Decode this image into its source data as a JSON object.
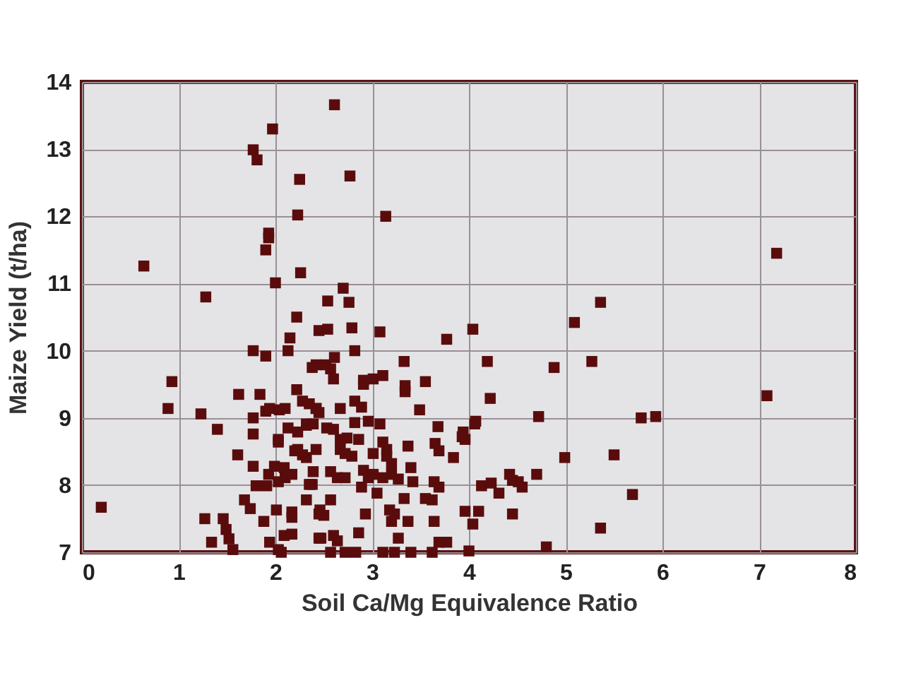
{
  "chart_data": {
    "type": "scatter",
    "xlabel": "Soil Ca/Mg Equivalence Ratio",
    "ylabel": "Maize Yield (t/ha)",
    "color": "#5a0c0c",
    "marker": "square",
    "grid": true,
    "xlim": [
      0,
      8
    ],
    "ylim": [
      7,
      14
    ],
    "xticks": [
      0,
      1,
      2,
      3,
      4,
      5,
      6,
      7,
      8
    ],
    "yticks": [
      7,
      8,
      9,
      10,
      11,
      12,
      13,
      14
    ],
    "x": [
      0.2,
      0.64,
      1.28,
      0.93,
      0.89,
      1.23,
      1.4,
      1.62,
      1.84,
      1.77,
      1.9,
      1.61,
      1.77,
      1.77,
      1.77,
      1.27,
      1.34,
      1.46,
      1.49,
      1.52,
      1.56,
      1.68,
      1.74,
      1.88,
      1.94,
      1.8,
      1.91,
      1.93,
      1.99,
      2.09,
      2.1,
      2.17,
      2.03,
      1.9,
      1.94,
      2.04,
      2.1,
      2.22,
      2.22,
      2.15,
      2.13,
      2.45,
      2.54,
      2.54,
      2.26,
      2.0,
      1.9,
      1.93,
      1.93,
      2.23,
      2.25,
      1.77,
      1.81,
      1.97,
      2.61,
      2.13,
      2.23,
      2.32,
      2.42,
      2.52,
      2.57,
      2.6,
      2.03,
      2.23,
      2.32,
      2.42,
      2.01,
      2.17,
      2.32,
      2.45,
      2.57,
      2.38,
      2.09,
      2.17,
      2.45,
      2.03,
      2.77,
      3.14,
      2.7,
      2.76,
      2.79,
      3.08,
      3.77,
      2.82,
      2.61,
      2.42,
      2.38,
      3.33,
      3.55,
      3.34,
      3.34,
      2.91,
      2.91,
      3.01,
      3.11,
      2.28,
      2.35,
      2.42,
      2.45,
      2.67,
      2.82,
      2.89,
      3.49,
      2.32,
      2.39,
      2.53,
      2.6,
      2.82,
      2.96,
      3.08,
      3.68,
      2.03,
      2.67,
      2.74,
      2.86,
      3.11,
      3.15,
      3.37,
      3.65,
      3.69,
      2.2,
      2.28,
      2.67,
      2.72,
      2.79,
      3.01,
      3.15,
      3.2,
      3.84,
      2.39,
      2.57,
      2.64,
      2.72,
      2.91,
      2.96,
      3.01,
      3.11,
      3.2,
      3.27,
      3.4,
      3.42,
      3.64,
      2.35,
      2.89,
      3.05,
      3.33,
      3.55,
      3.62,
      2.46,
      2.17,
      2.5,
      3.18,
      3.23,
      3.2,
      3.37,
      3.64,
      2.93,
      2.47,
      2.6,
      2.64,
      2.86,
      3.27,
      3.69,
      3.77,
      2.06,
      2.57,
      2.72,
      2.83,
      3.11,
      3.23,
      3.4,
      3.62,
      7.18,
      5.36,
      5.09,
      4.04,
      4.19,
      4.88,
      5.27,
      4.22,
      7.08,
      4.72,
      5.78,
      5.93,
      4.07,
      4.06,
      3.94,
      3.93,
      3.96,
      4.99,
      5.5,
      3.69,
      4.13,
      4.23,
      4.31,
      4.42,
      4.45,
      4.51,
      4.55,
      4.7,
      5.69,
      3.96,
      4.1,
      4.04,
      4.45,
      5.36,
      4.0,
      4.8
    ],
    "values": [
      7.67,
      11.26,
      10.8,
      9.54,
      9.14,
      9.06,
      8.83,
      9.35,
      9.35,
      10.0,
      9.92,
      8.45,
      8.28,
      8.76,
      9.0,
      7.5,
      7.15,
      7.5,
      7.34,
      7.2,
      7.04,
      7.78,
      7.65,
      7.46,
      7.15,
      7.99,
      7.99,
      8.16,
      8.28,
      8.26,
      8.11,
      8.16,
      8.05,
      9.1,
      9.14,
      9.12,
      9.14,
      9.42,
      10.5,
      10.19,
      10.0,
      10.3,
      10.32,
      10.74,
      11.16,
      11.01,
      11.5,
      11.68,
      11.75,
      12.02,
      12.55,
      12.99,
      12.84,
      13.3,
      13.66,
      8.85,
      8.79,
      8.89,
      9.14,
      9.79,
      9.73,
      9.58,
      8.64,
      8.53,
      8.41,
      8.53,
      7.63,
      7.52,
      7.78,
      7.57,
      7.78,
      8.01,
      7.25,
      7.27,
      7.21,
      7.04,
      12.6,
      12.0,
      10.93,
      10.72,
      10.34,
      10.28,
      10.17,
      10.0,
      9.9,
      9.79,
      9.75,
      9.84,
      9.54,
      9.48,
      9.39,
      9.56,
      9.5,
      9.58,
      9.63,
      9.25,
      9.21,
      9.14,
      9.08,
      9.14,
      9.25,
      9.16,
      9.12,
      8.91,
      8.91,
      8.85,
      8.83,
      8.93,
      8.95,
      8.91,
      8.87,
      8.68,
      8.68,
      8.7,
      8.68,
      8.64,
      8.53,
      8.58,
      8.62,
      8.51,
      8.51,
      8.45,
      8.53,
      8.47,
      8.43,
      8.47,
      8.43,
      8.32,
      8.41,
      8.2,
      8.2,
      8.11,
      8.11,
      8.22,
      8.11,
      8.16,
      8.11,
      8.16,
      8.09,
      8.26,
      8.05,
      8.05,
      8.01,
      7.97,
      7.88,
      7.8,
      7.8,
      7.78,
      7.63,
      7.6,
      7.55,
      7.63,
      7.57,
      7.46,
      7.46,
      7.46,
      7.57,
      7.21,
      7.25,
      7.17,
      7.29,
      7.21,
      7.15,
      7.15,
      7.0,
      7.0,
      7.0,
      7.0,
      7.0,
      7.0,
      7.0,
      7.0,
      11.45,
      10.72,
      10.42,
      10.32,
      9.84,
      9.75,
      9.84,
      9.29,
      9.33,
      9.02,
      9.0,
      9.02,
      8.95,
      8.91,
      8.79,
      8.72,
      8.68,
      8.41,
      8.45,
      7.97,
      7.99,
      8.03,
      7.88,
      8.16,
      8.07,
      8.05,
      7.97,
      8.16,
      7.86,
      7.61,
      7.61,
      7.42,
      7.57,
      7.36,
      7.02,
      7.08
    ]
  }
}
